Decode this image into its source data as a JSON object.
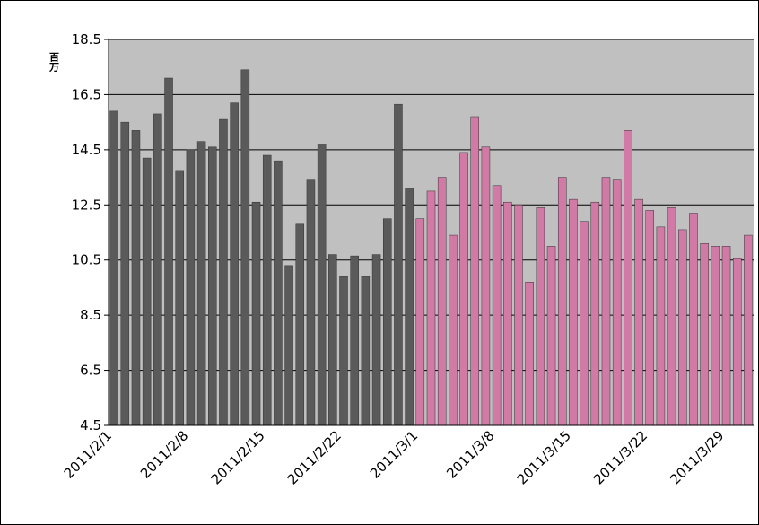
{
  "chart_data": {
    "type": "bar",
    "y_unit": "百万",
    "categories": [
      "2011/2/1",
      null,
      null,
      null,
      null,
      null,
      null,
      "2011/2/8",
      null,
      null,
      null,
      null,
      null,
      null,
      "2011/2/15",
      null,
      null,
      null,
      null,
      null,
      null,
      "2011/2/22",
      null,
      null,
      null,
      null,
      null,
      null,
      "2011/3/1",
      null,
      null,
      null,
      null,
      null,
      null,
      "2011/3/8",
      null,
      null,
      null,
      null,
      null,
      null,
      "2011/3/15",
      null,
      null,
      null,
      null,
      null,
      null,
      "2011/3/22",
      null,
      null,
      null,
      null,
      null,
      null,
      "2011/3/29",
      null,
      null
    ],
    "series": [
      {
        "color": "#5a5a5a",
        "values": [
          15.9,
          15.5,
          15.2,
          14.2,
          15.8,
          17.1,
          13.75,
          14.5,
          14.8,
          14.6,
          15.6,
          16.2,
          17.4,
          12.6,
          14.3,
          14.1,
          10.3,
          11.8,
          13.4,
          14.7,
          10.7,
          9.9,
          10.65,
          9.9,
          10.7,
          12.0,
          16.15,
          13.1,
          null,
          null,
          null,
          null,
          null,
          null,
          null,
          null,
          null,
          null,
          null,
          null,
          null,
          null,
          null,
          null,
          null,
          null,
          null,
          null,
          null,
          null,
          null,
          null,
          null,
          null,
          null,
          null,
          null,
          null,
          null
        ]
      },
      {
        "color": "#d27aa6",
        "values": [
          null,
          null,
          null,
          null,
          null,
          null,
          null,
          null,
          null,
          null,
          null,
          null,
          null,
          null,
          null,
          null,
          null,
          null,
          null,
          null,
          null,
          null,
          null,
          null,
          null,
          null,
          null,
          null,
          12.0,
          13.0,
          13.5,
          11.4,
          14.4,
          15.7,
          14.6,
          13.2,
          12.6,
          12.5,
          9.7,
          12.4,
          11.0,
          13.5,
          12.7,
          11.9,
          12.6,
          13.5,
          13.4,
          15.2,
          12.7,
          12.3,
          11.7,
          12.4,
          11.6,
          12.2,
          11.1,
          11.0,
          11.0,
          10.55,
          11.4
        ]
      }
    ],
    "ylim": [
      4.5,
      18.5
    ],
    "yticks": [
      4.5,
      6.5,
      8.5,
      10.5,
      12.5,
      14.5,
      16.5,
      18.5
    ],
    "grid": true
  }
}
